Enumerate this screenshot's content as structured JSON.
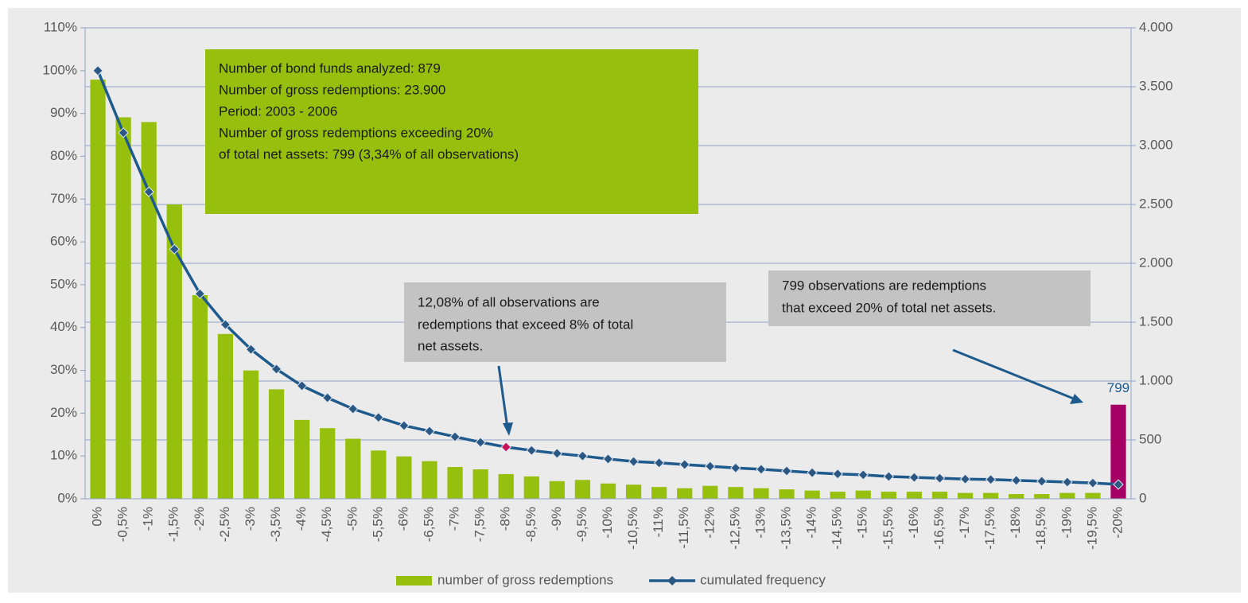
{
  "chart_data": {
    "type": "bar-line",
    "categories": [
      "0%",
      "-0,5%",
      "-1%",
      "-1,5%",
      "-2%",
      "-2,5%",
      "-3%",
      "-3,5%",
      "-4%",
      "-4,5%",
      "-5%",
      "-5,5%",
      "-6%",
      "-6,5%",
      "-7%",
      "-7,5%",
      "-8%",
      "-8,5%",
      "-9%",
      "-9,5%",
      "-10%",
      "-10,5%",
      "-11%",
      "-11,5%",
      "-12%",
      "-12,5%",
      "-13%",
      "-13,5%",
      "-14%",
      "-14,5%",
      "-15%",
      "-15,5%",
      "-16%",
      "-16,5%",
      "-17%",
      "-17,5%",
      "-18%",
      "-18,5%",
      "-19%",
      "-19,5%",
      "-20%"
    ],
    "series": [
      {
        "name": "number of gross redemptions",
        "type": "bar",
        "axis": "y2",
        "color": "#97bf0d",
        "colors": [
          "#97bf0d",
          "#97bf0d",
          "#97bf0d",
          "#97bf0d",
          "#97bf0d",
          "#97bf0d",
          "#97bf0d",
          "#97bf0d",
          "#97bf0d",
          "#97bf0d",
          "#97bf0d",
          "#97bf0d",
          "#97bf0d",
          "#97bf0d",
          "#97bf0d",
          "#97bf0d",
          "#97bf0d",
          "#97bf0d",
          "#97bf0d",
          "#97bf0d",
          "#97bf0d",
          "#97bf0d",
          "#97bf0d",
          "#97bf0d",
          "#97bf0d",
          "#97bf0d",
          "#97bf0d",
          "#97bf0d",
          "#97bf0d",
          "#97bf0d",
          "#97bf0d",
          "#97bf0d",
          "#97bf0d",
          "#97bf0d",
          "#97bf0d",
          "#97bf0d",
          "#97bf0d",
          "#97bf0d",
          "#97bf0d",
          "#97bf0d",
          "#a50064"
        ],
        "values": [
          3560,
          3240,
          3200,
          2500,
          1730,
          1400,
          1090,
          930,
          670,
          600,
          510,
          410,
          360,
          320,
          270,
          250,
          210,
          190,
          150,
          160,
          130,
          120,
          100,
          90,
          110,
          100,
          90,
          80,
          70,
          60,
          70,
          60,
          60,
          60,
          50,
          50,
          40,
          40,
          50,
          50,
          799
        ]
      },
      {
        "name": "cumulated frequency",
        "type": "line",
        "axis": "y",
        "color": "#1f5a8c",
        "marker_colors": [
          "#2a5783",
          "#2a5783",
          "#2a5783",
          "#2a5783",
          "#2a5783",
          "#2a5783",
          "#2a5783",
          "#2a5783",
          "#2a5783",
          "#2a5783",
          "#2a5783",
          "#2a5783",
          "#2a5783",
          "#2a5783",
          "#2a5783",
          "#2a5783",
          "#c8105a",
          "#2a5783",
          "#2a5783",
          "#2a5783",
          "#2a5783",
          "#2a5783",
          "#2a5783",
          "#2a5783",
          "#2a5783",
          "#2a5783",
          "#2a5783",
          "#2a5783",
          "#2a5783",
          "#2a5783",
          "#2a5783",
          "#2a5783",
          "#2a5783",
          "#2a5783",
          "#2a5783",
          "#2a5783",
          "#2a5783",
          "#2a5783",
          "#2a5783",
          "#2a5783",
          "#2a5783"
        ],
        "values": [
          100,
          85.5,
          71.7,
          58.3,
          47.9,
          40.7,
          34.9,
          30.3,
          26.4,
          23.6,
          21.0,
          19.0,
          17.1,
          15.8,
          14.5,
          13.2,
          12.08,
          11.3,
          10.6,
          10.0,
          9.3,
          8.7,
          8.4,
          8.0,
          7.6,
          7.2,
          6.9,
          6.5,
          6.1,
          5.8,
          5.6,
          5.2,
          5.0,
          4.8,
          4.6,
          4.5,
          4.3,
          4.1,
          3.9,
          3.7,
          3.34
        ]
      }
    ],
    "ylim": [
      0,
      110
    ],
    "yticks": [
      {
        "value": 0,
        "label": "0%"
      },
      {
        "value": 10,
        "label": "10%"
      },
      {
        "value": 20,
        "label": "20%"
      },
      {
        "value": 30,
        "label": "30%"
      },
      {
        "value": 40,
        "label": "40%"
      },
      {
        "value": 50,
        "label": "50%"
      },
      {
        "value": 60,
        "label": "60%"
      },
      {
        "value": 70,
        "label": "70%"
      },
      {
        "value": 80,
        "label": "80%"
      },
      {
        "value": 90,
        "label": "90%"
      },
      {
        "value": 100,
        "label": "100%"
      },
      {
        "value": 110,
        "label": "110%"
      }
    ],
    "y2lim": [
      0,
      4000
    ],
    "y2ticks": [
      0,
      500,
      {
        "value": 1000,
        "label": "1.000"
      },
      {
        "value": 1500,
        "label": "1.500"
      },
      {
        "value": 2000,
        "label": "2.000"
      },
      {
        "value": 2500,
        "label": "2.500"
      },
      {
        "value": 3000,
        "label": "3.000"
      },
      {
        "value": 3500,
        "label": "3.500"
      },
      {
        "value": 4000,
        "label": "4.000"
      }
    ],
    "grid": true,
    "legend": "bottom",
    "annotations": [
      {
        "lines": [
          "Number of bond funds analyzed: 879",
          "Number of gross redemptions: 23.900",
          "Period: 2003 - 2006",
          "Number of gross redemptions exceeding 20%",
          "of total net assets: 799 (3,34% of all observations)"
        ]
      },
      {
        "lines": [
          "12,08% of all observations are",
          "redemptions that exceed 8% of total",
          "net assets."
        ]
      },
      {
        "lines": [
          "799 observations are redemptions",
          "that exceed 20% of total net assets."
        ]
      }
    ]
  }
}
